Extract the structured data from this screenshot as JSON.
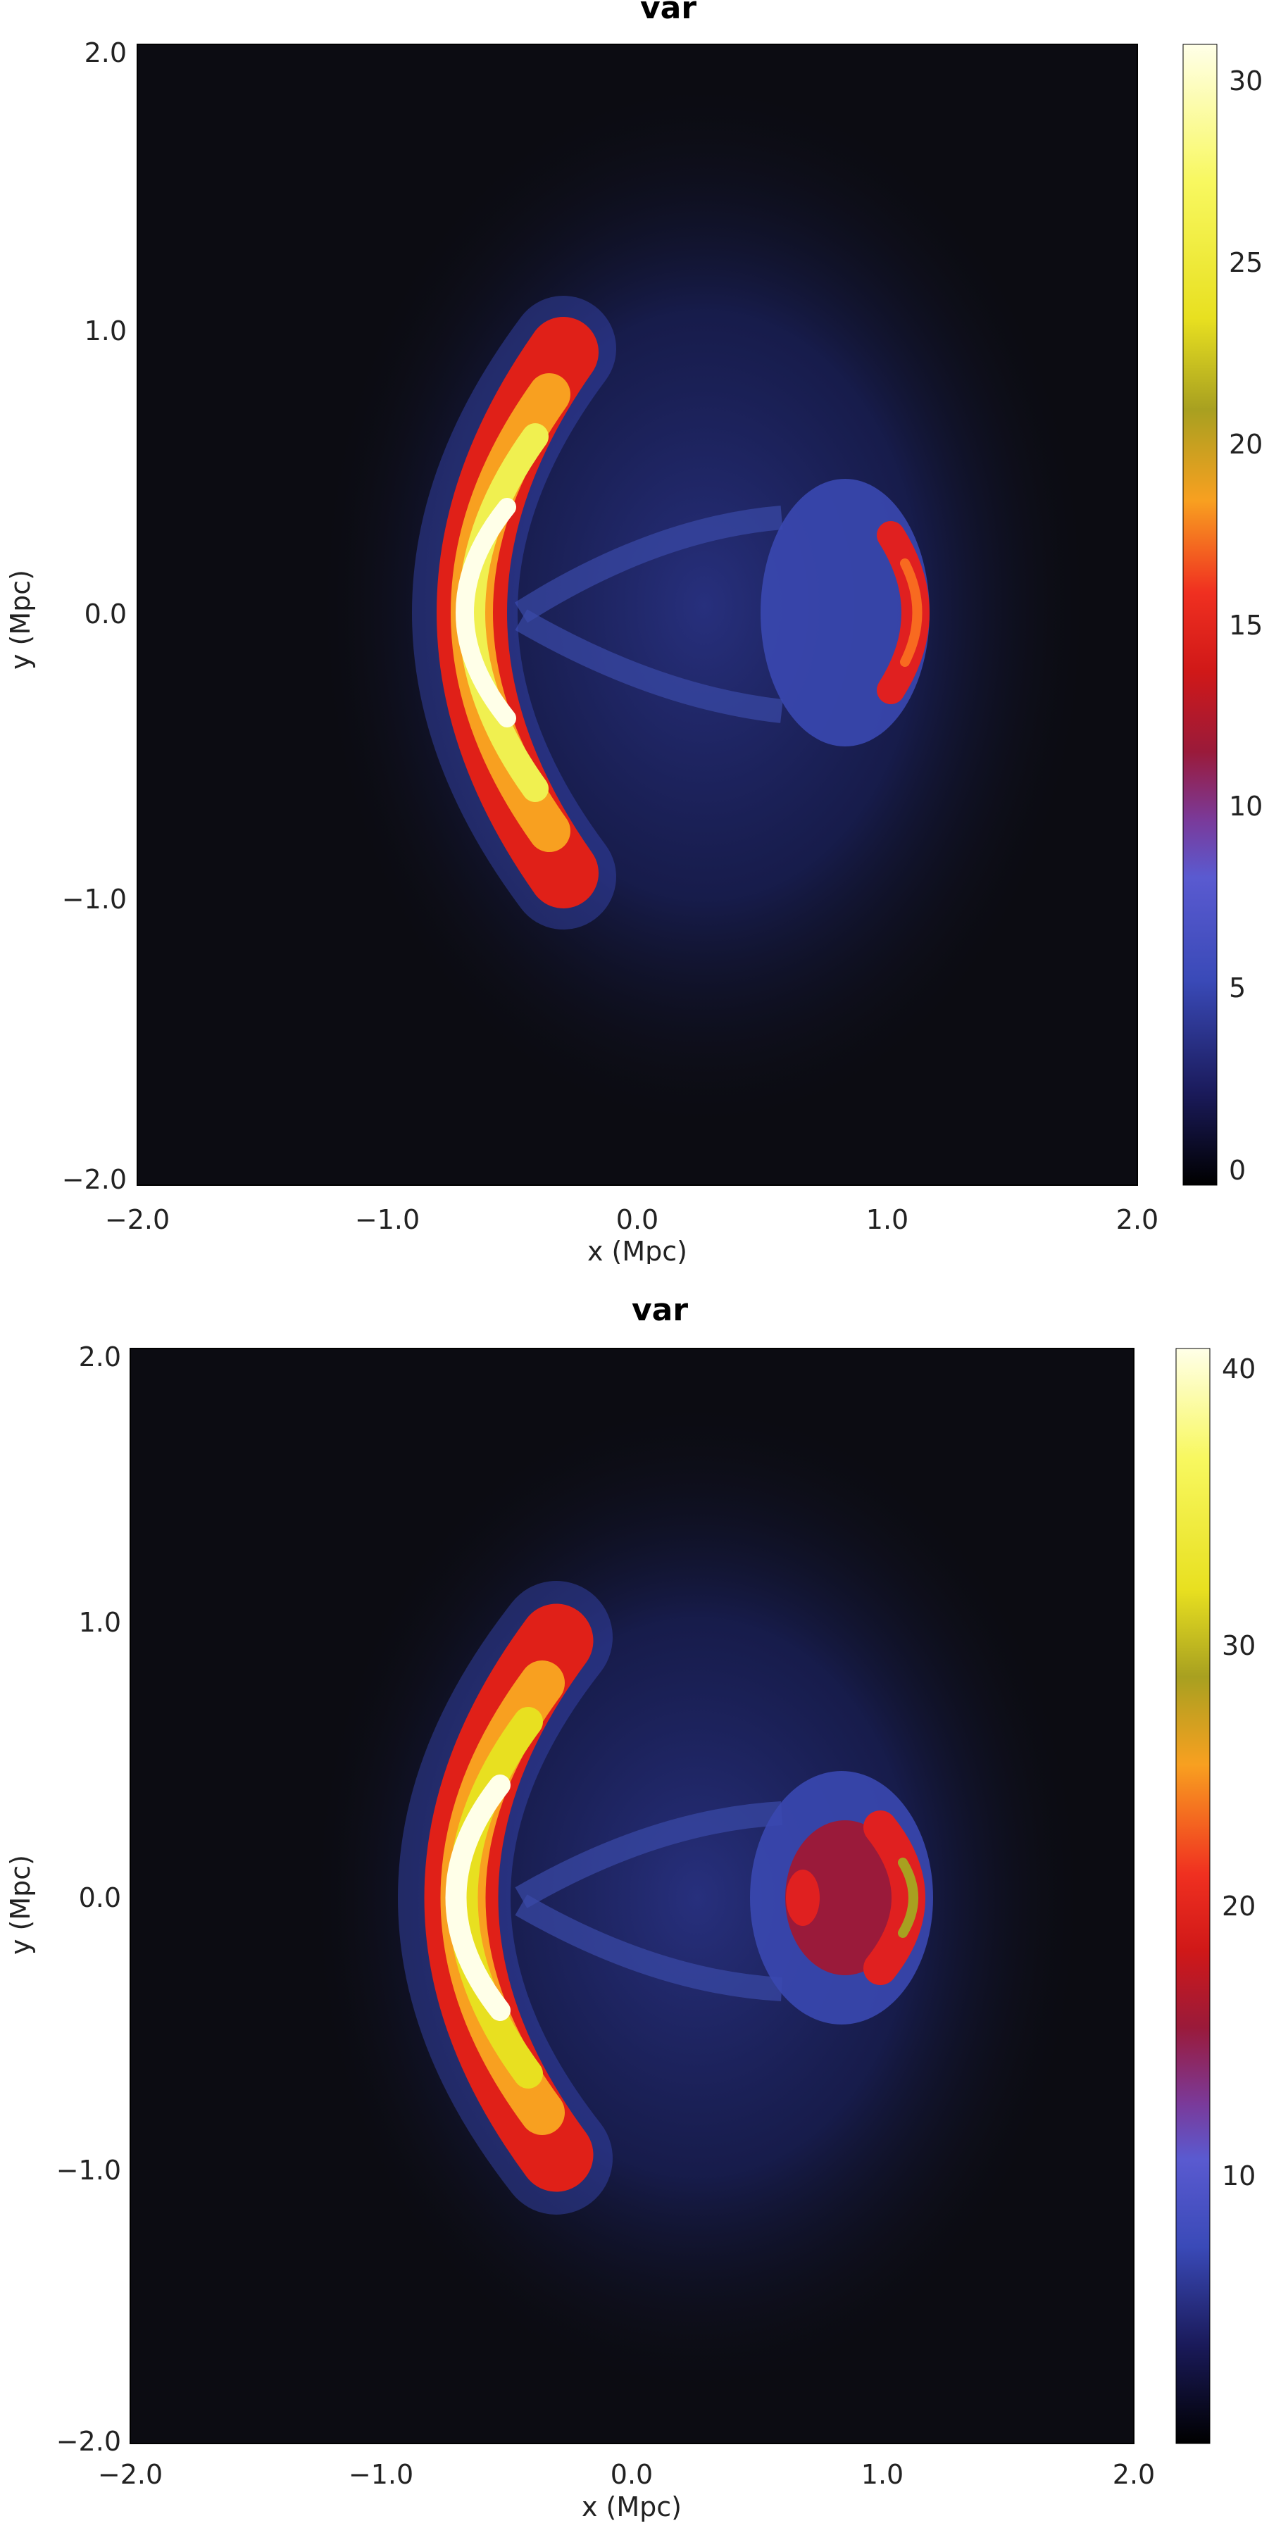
{
  "chart_data": [
    {
      "type": "heatmap",
      "title": "var",
      "xlabel": "x (Mpc)",
      "ylabel": "y (Mpc)",
      "xlim": [
        -2.0,
        2.0
      ],
      "ylim": [
        -2.0,
        2.0
      ],
      "x_ticks": [
        "−2.0",
        "−1.0",
        "0.0",
        "1.0",
        "2.0"
      ],
      "y_ticks": [
        "−2.0",
        "−1.0",
        "0.0",
        "1.0",
        "2.0"
      ],
      "colorbar": {
        "range": [
          0,
          31
        ],
        "ticks": [
          0,
          5,
          10,
          15,
          20,
          25,
          30
        ],
        "tick_labels": [
          "0",
          "5",
          "10",
          "15",
          "20",
          "25",
          "30"
        ]
      },
      "features": {
        "bow_shock_peak": 31,
        "inner_cap_peak": 14,
        "diffuse_halo_level": 4
      }
    },
    {
      "type": "heatmap",
      "title": "var",
      "xlabel": "x (Mpc)",
      "ylabel": "y (Mpc)",
      "xlim": [
        -2.0,
        2.0
      ],
      "ylim": [
        -2.0,
        2.0
      ],
      "x_ticks": [
        "−2.0",
        "−1.0",
        "0.0",
        "1.0",
        "2.0"
      ],
      "y_ticks": [
        "−2.0",
        "−1.0",
        "0.0",
        "1.0",
        "2.0"
      ],
      "colorbar": {
        "range": [
          0,
          42
        ],
        "ticks": [
          10,
          20,
          30,
          40
        ],
        "tick_labels": [
          "10",
          "20",
          "30",
          "40"
        ]
      },
      "features": {
        "bow_shock_peak": 41,
        "inner_cap_peak": 28,
        "diffuse_halo_level": 5
      }
    }
  ],
  "colormap": [
    "#000000",
    "#1a1a5a",
    "#3a4ab8",
    "#5a5ad0",
    "#7a3a9a",
    "#9a1a3a",
    "#d01818",
    "#f03020",
    "#f86a20",
    "#f8a020",
    "#a8a020",
    "#e8e020",
    "#f8f860",
    "#ffffe8"
  ]
}
